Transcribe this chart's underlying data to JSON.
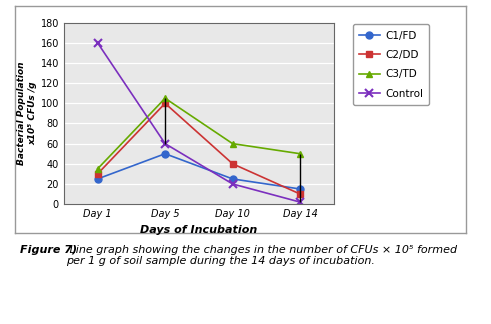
{
  "x_labels": [
    "Day 1",
    "Day 5",
    "Day 10",
    "Day 14"
  ],
  "x_positions": [
    1,
    2,
    3,
    4
  ],
  "series": {
    "C1/FD": {
      "values": [
        25,
        50,
        25,
        15
      ],
      "color": "#3366CC",
      "marker": "o",
      "linestyle": "-"
    },
    "C2/DD": {
      "values": [
        30,
        100,
        40,
        10
      ],
      "color": "#CC3333",
      "marker": "s",
      "linestyle": "-"
    },
    "C3/TD": {
      "values": [
        35,
        105,
        60,
        50
      ],
      "color": "#66AA00",
      "marker": "^",
      "linestyle": "-"
    },
    "Control": {
      "values": [
        160,
        60,
        20,
        2
      ],
      "color": "#7B2FBE",
      "marker": "x",
      "linestyle": "-"
    }
  },
  "ylabel": "Bacterial Population\nx10⁵ CFUs /g",
  "xlabel": "Days of Incubation",
  "ylim": [
    0,
    180
  ],
  "yticks": [
    0,
    20,
    40,
    60,
    80,
    100,
    120,
    140,
    160,
    180
  ],
  "bg_color": "#E8E8E8",
  "figure_bg": "#FFFFFF",
  "outer_box_color": "#CCCCCC",
  "caption_bold": "Figure 7)",
  "caption_rest": " Line graph showing the changes in the number of CFUs × 10⁵ formed\nper 1 g of soil sample during the 14 days of incubation.",
  "legend_order": [
    "C1/FD",
    "C2/DD",
    "C3/TD",
    "Control"
  ],
  "vlines": [
    {
      "x": 2,
      "ymin": 60,
      "ymax": 105
    },
    {
      "x": 4,
      "ymin": 2,
      "ymax": 50
    }
  ]
}
